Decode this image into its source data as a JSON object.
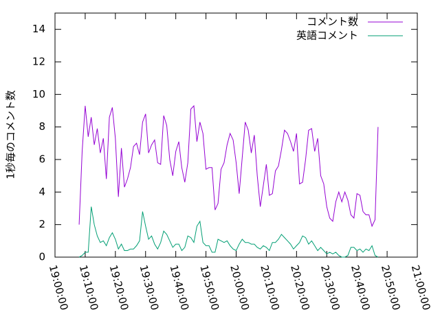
{
  "chart_data": {
    "type": "line",
    "ylabel": "1秒毎のコメント数",
    "x": [
      "19:08:00",
      "19:09:00",
      "19:10:00",
      "19:11:00",
      "19:12:00",
      "19:13:00",
      "19:14:00",
      "19:15:00",
      "19:16:00",
      "19:17:00",
      "19:18:00",
      "19:19:00",
      "19:20:00",
      "19:21:00",
      "19:22:00",
      "19:23:00",
      "19:24:00",
      "19:25:00",
      "19:26:00",
      "19:27:00",
      "19:28:00",
      "19:29:00",
      "19:30:00",
      "19:31:00",
      "19:32:00",
      "19:33:00",
      "19:34:00",
      "19:35:00",
      "19:36:00",
      "19:37:00",
      "19:38:00",
      "19:39:00",
      "19:40:00",
      "19:41:00",
      "19:42:00",
      "19:43:00",
      "19:44:00",
      "19:45:00",
      "19:46:00",
      "19:47:00",
      "19:48:00",
      "19:49:00",
      "19:50:00",
      "19:51:00",
      "19:52:00",
      "19:53:00",
      "19:54:00",
      "19:55:00",
      "19:56:00",
      "19:57:00",
      "19:58:00",
      "19:59:00",
      "20:00:00",
      "20:01:00",
      "20:02:00",
      "20:03:00",
      "20:04:00",
      "20:05:00",
      "20:06:00",
      "20:07:00",
      "20:08:00",
      "20:09:00",
      "20:10:00",
      "20:11:00",
      "20:12:00",
      "20:13:00",
      "20:14:00",
      "20:15:00",
      "20:16:00",
      "20:17:00",
      "20:18:00",
      "20:19:00",
      "20:20:00",
      "20:21:00",
      "20:22:00",
      "20:23:00",
      "20:24:00",
      "20:25:00",
      "20:26:00",
      "20:27:00",
      "20:28:00",
      "20:29:00",
      "20:30:00",
      "20:31:00",
      "20:32:00",
      "20:33:00",
      "20:34:00",
      "20:35:00",
      "20:36:00",
      "20:37:00",
      "20:38:00",
      "20:39:00",
      "20:40:00",
      "20:41:00",
      "20:42:00",
      "20:43:00",
      "20:44:00",
      "20:45:00",
      "20:46:00",
      "20:47:00"
    ],
    "series": [
      {
        "name": "コメント数",
        "color": "#9400d3",
        "values": [
          2.0,
          6.5,
          9.3,
          7.4,
          8.6,
          6.9,
          7.9,
          6.4,
          7.3,
          4.8,
          8.6,
          9.2,
          7.3,
          3.7,
          6.7,
          4.3,
          4.8,
          5.5,
          6.8,
          7.0,
          6.3,
          8.3,
          8.8,
          6.4,
          6.9,
          7.2,
          5.8,
          5.7,
          8.7,
          8.1,
          6.0,
          5.0,
          6.5,
          7.1,
          5.5,
          4.6,
          5.8,
          9.1,
          9.3,
          7.1,
          8.3,
          7.6,
          5.4,
          5.5,
          5.5,
          2.9,
          3.3,
          5.4,
          5.8,
          6.9,
          7.6,
          7.2,
          5.8,
          3.9,
          6.1,
          8.3,
          7.8,
          6.4,
          7.5,
          5.0,
          3.1,
          4.4,
          5.7,
          3.8,
          3.9,
          5.3,
          5.6,
          6.6,
          7.8,
          7.6,
          7.1,
          6.5,
          7.6,
          4.5,
          4.6,
          6.0,
          7.8,
          7.9,
          6.5,
          7.3,
          5.0,
          4.5,
          3.1,
          2.4,
          2.2,
          3.4,
          4.0,
          3.4,
          4.0,
          3.5,
          2.6,
          2.4,
          3.9,
          3.8,
          2.8,
          2.6,
          2.6,
          1.9,
          2.3,
          8.0
        ]
      },
      {
        "name": "英語コメント",
        "color": "#009e73",
        "values": [
          0,
          0.1,
          0.3,
          0.3,
          3.1,
          2.0,
          1.3,
          0.9,
          1.0,
          0.7,
          1.2,
          1.5,
          1.1,
          0.5,
          0.8,
          0.4,
          0.4,
          0.5,
          0.5,
          0.7,
          1.0,
          2.8,
          1.9,
          1.1,
          1.3,
          0.8,
          0.5,
          0.9,
          1.6,
          1.4,
          1.0,
          0.6,
          0.8,
          0.8,
          0.4,
          0.6,
          1.3,
          1.2,
          0.9,
          1.9,
          2.2,
          0.9,
          0.7,
          0.7,
          0.3,
          0.3,
          1.1,
          1.0,
          0.9,
          1.0,
          0.7,
          0.5,
          0.4,
          0.8,
          1.1,
          0.9,
          0.9,
          0.8,
          0.8,
          0.6,
          0.5,
          0.7,
          0.6,
          0.4,
          0.9,
          0.9,
          1.1,
          1.4,
          1.2,
          1.0,
          0.8,
          0.5,
          0.7,
          0.9,
          1.3,
          1.2,
          0.8,
          1.0,
          0.7,
          0.4,
          0.6,
          0.4,
          0.2,
          0.3,
          0.2,
          0.3,
          0.1,
          0,
          0,
          0.1,
          0.6,
          0.6,
          0.4,
          0.5,
          0.3,
          0.5,
          0.4,
          0.7,
          0.1,
          0
        ]
      }
    ],
    "xlim": [
      "19:00:00",
      "21:00:00"
    ],
    "xticks": [
      "19:00:00",
      "19:10:00",
      "19:20:00",
      "19:30:00",
      "19:40:00",
      "19:50:00",
      "20:00:00",
      "20:10:00",
      "20:20:00",
      "20:30:00",
      "20:40:00",
      "20:50:00",
      "21:00:00"
    ],
    "ylim": [
      0,
      15
    ],
    "yticks": [
      0,
      2,
      4,
      6,
      8,
      10,
      12,
      14
    ],
    "legend": "top-right"
  }
}
